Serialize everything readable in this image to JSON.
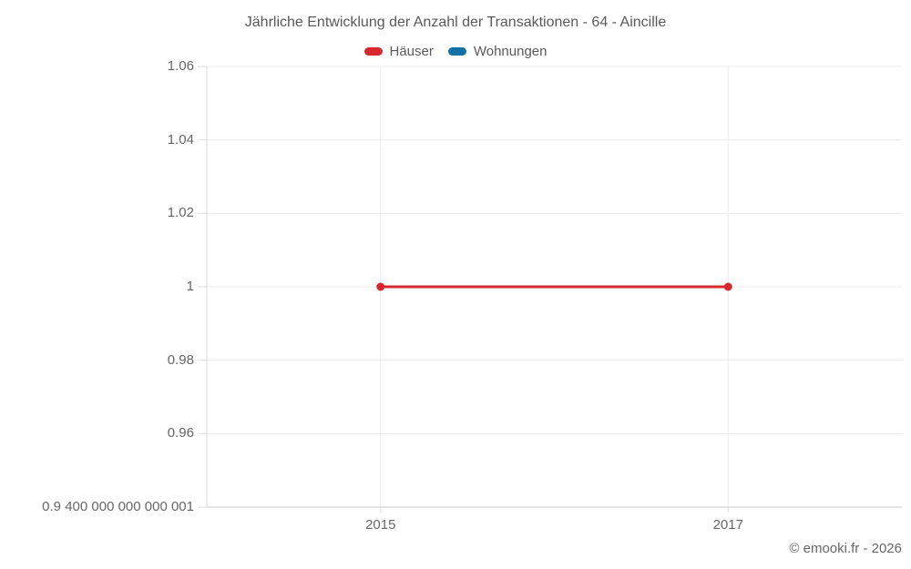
{
  "credit": "© emooki.fr - 2026",
  "chart_data": {
    "type": "line",
    "title": "Jährliche Entwicklung der Anzahl der Transaktionen - 64 - Aincille",
    "series": [
      {
        "name": "Häuser",
        "color": "#d7282e",
        "x": [
          2015,
          2017
        ],
        "values": [
          1,
          1
        ]
      },
      {
        "name": "Wohnungen",
        "color": "#1371a5",
        "x": [],
        "values": []
      }
    ],
    "x_ticks": [
      {
        "value": 2015,
        "label": "2015"
      },
      {
        "value": 2017,
        "label": "2017"
      }
    ],
    "y_ticks": [
      {
        "value": 1.06,
        "label": "1.06"
      },
      {
        "value": 1.04,
        "label": "1.04"
      },
      {
        "value": 1.02,
        "label": "1.02"
      },
      {
        "value": 1,
        "label": "1"
      },
      {
        "value": 0.98,
        "label": "0.98"
      },
      {
        "value": 0.96,
        "label": "0.96"
      },
      {
        "value": 0.9400000000000001,
        "label": "0.9 400 000 000 000 001"
      }
    ],
    "xlim": [
      2014,
      2018
    ],
    "ylim": [
      0.9400000000000001,
      1.06
    ],
    "grid": true,
    "legend_position": "top",
    "colors": {
      "grid": "#ececec",
      "axis_bottom": "#c9c9c9",
      "axis_left": "#d9d9d9",
      "tick": "#dddddd",
      "label": "#666666",
      "title": "#595959"
    }
  }
}
